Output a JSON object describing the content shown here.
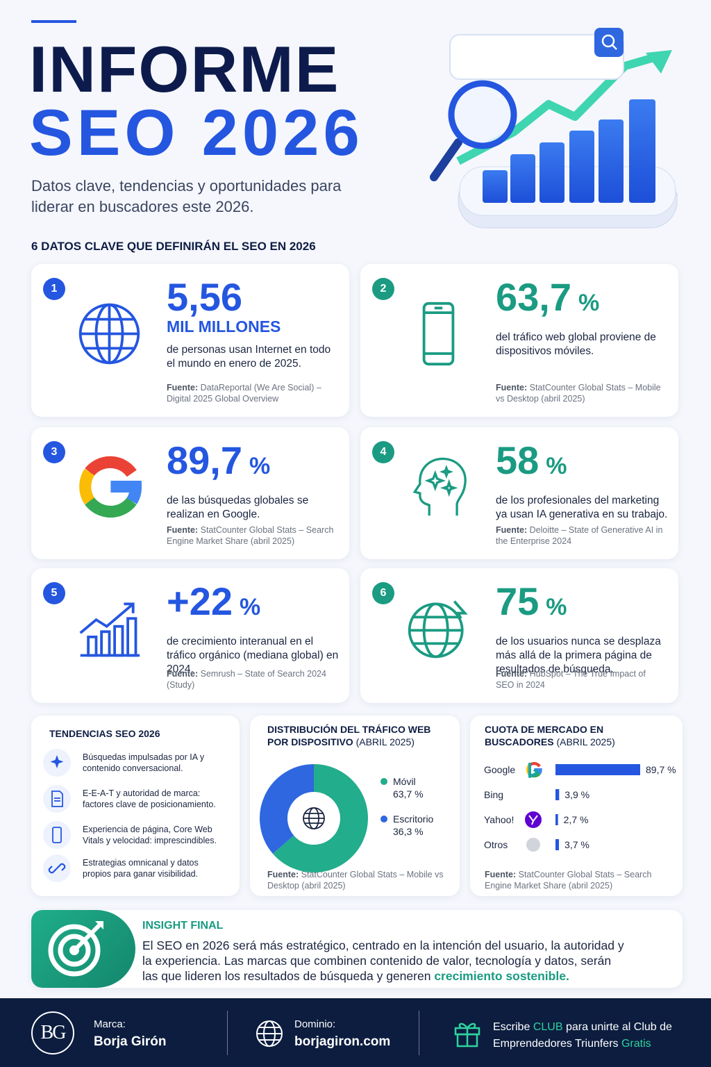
{
  "header": {
    "title_line1": "INFORME",
    "title_line2": "SEO 2026",
    "subtitle": "Datos clave, tendencias y oportunidades para liderar en buscadores este 2026."
  },
  "key_facts": {
    "heading": "6 DATOS CLAVE QUE DEFINIRÁN EL SEO EN 2026",
    "items": [
      {
        "number": "1",
        "value": "5,56",
        "unit": "MIL MILLONES",
        "description": "de personas usan Internet en todo el mundo en enero de 2025.",
        "source_label": "Fuente:",
        "source": "DataReportal (We Are Social) – Digital 2025 Global Overview"
      },
      {
        "number": "2",
        "value": "63,7",
        "unit": "%",
        "description": "del tráfico web global proviene de dispositivos móviles.",
        "source_label": "Fuente:",
        "source": "StatCounter Global Stats – Mobile vs Desktop (abril 2025)"
      },
      {
        "number": "3",
        "value": "89,7",
        "unit": "%",
        "description": "de las búsquedas globales se realizan en Google.",
        "source_label": "Fuente:",
        "source": "StatCounter Global Stats – Search Engine Market Share (abril 2025)"
      },
      {
        "number": "4",
        "value": "58",
        "unit": "%",
        "description": "de los profesionales del marketing ya usan IA generativa en su trabajo.",
        "source_label": "Fuente:",
        "source": "Deloitte – State of Generative AI in the Enterprise 2024"
      },
      {
        "number": "5",
        "value": "+22",
        "unit": "%",
        "description": "de crecimiento interanual en el tráfico orgánico (mediana global) en 2024.",
        "source_label": "Fuente:",
        "source": "Semrush – State of Search 2024 (Study)"
      },
      {
        "number": "6",
        "value": "75",
        "unit": "%",
        "description": "de los usuarios nunca se desplaza más allá de la primera página de resultados de búsqueda.",
        "source_label": "Fuente:",
        "source": "HubSpot – The True Impact of SEO in 2024"
      }
    ]
  },
  "trends": {
    "heading": "TENDENCIAS SEO 2026",
    "items": [
      "Búsquedas impulsadas por IA y contenido conversacional.",
      "E-E-A-T y autoridad de marca: factores clave de posicionamiento.",
      "Experiencia de página, Core Web Vitals y velocidad: imprescindibles.",
      "Estrategias omnicanal y datos propios para ganar visibilidad."
    ]
  },
  "chart_data": [
    {
      "type": "donut",
      "title": "DISTRIBUCIÓN DEL TRÁFICO WEB POR DISPOSITIVO",
      "subtitle": "(ABRIL 2025)",
      "categories": [
        "Móvil",
        "Escritorio"
      ],
      "values": [
        63.7,
        36.3
      ],
      "value_labels": [
        "63,7 %",
        "36,3 %"
      ],
      "colors": [
        "#22ad8c",
        "#2f67e0"
      ],
      "source_label": "Fuente:",
      "source": "StatCounter Global Stats – Mobile vs Desktop (abril 2025)"
    },
    {
      "type": "bar",
      "orientation": "horizontal",
      "title": "CUOTA DE MERCADO EN BUSCADORES",
      "subtitle": "(ABRIL 2025)",
      "categories": [
        "Google",
        "Bing",
        "Yahoo!",
        "Otros"
      ],
      "values": [
        89.7,
        3.9,
        2.7,
        3.7
      ],
      "value_labels": [
        "89,7 %",
        "3,9 %",
        "2,7 %",
        "3,7 %"
      ],
      "color": "#2456e0",
      "source_label": "Fuente:",
      "source": "StatCounter Global Stats – Search Engine Market Share (abril 2025)"
    }
  ],
  "insight": {
    "title": "INSIGHT FINAL",
    "text": "El SEO en 2026 será más estratégico, centrado en la intención del usuario, la autoridad y la experiencia. Las marcas que combinen contenido de valor, tecnología y datos, serán las que lideren los resultados de búsqueda y generen",
    "highlight": "crecimiento sostenible."
  },
  "footer": {
    "logo": "BG",
    "brand_label": "Marca:",
    "brand": "Borja Girón",
    "domain_label": "Dominio:",
    "domain": "borjagiron.com",
    "cta": [
      "Escribe",
      "CLUB",
      "para unirte al Club de Emprendedores Triunfers",
      "Gratis"
    ]
  }
}
